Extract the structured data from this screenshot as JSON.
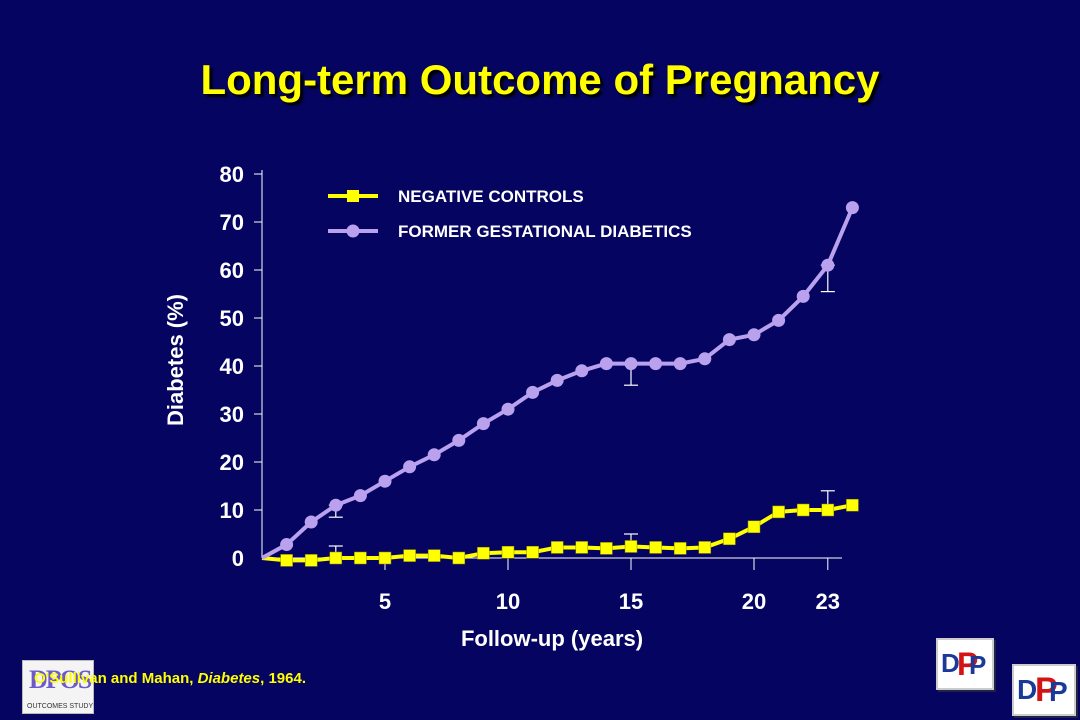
{
  "slide": {
    "title": "Long-term Outcome of Pregnancy",
    "citation_authors": "O'Sullivan and Mahan, ",
    "citation_journal": "Diabetes",
    "citation_year": ", 1964.",
    "logo_left_text": "DPOS",
    "logo_left_subtitle": "OUTCOMES STUDY",
    "logo_right_text": "DPP",
    "colors": {
      "background": "#050561",
      "title": "#ffff00",
      "negative_controls": "#ffff00",
      "former_gdm": "#b9a1ee"
    }
  },
  "chart_data": {
    "type": "line",
    "title": "Long-term Outcome of Pregnancy",
    "xlabel": "Follow-up (years)",
    "ylabel": "Diabetes (%)",
    "xlim": [
      0,
      24
    ],
    "ylim": [
      0,
      80
    ],
    "x_ticks": [
      5,
      10,
      15,
      20,
      23
    ],
    "y_ticks": [
      0,
      10,
      20,
      30,
      40,
      50,
      60,
      70,
      80
    ],
    "legend_position": "top",
    "series": [
      {
        "name": "NEGATIVE CONTROLS",
        "marker": "square",
        "color": "#ffff00",
        "x": [
          0,
          1,
          2,
          3,
          4,
          5,
          6,
          7,
          8,
          9,
          10,
          11,
          12,
          13,
          14,
          15,
          16,
          17,
          18,
          19,
          20,
          21,
          22,
          23,
          24
        ],
        "y": [
          0,
          -0.5,
          -0.5,
          0,
          0,
          0,
          0.5,
          0.5,
          0,
          1,
          1.2,
          1.2,
          2.2,
          2.2,
          2,
          2.4,
          2.2,
          2,
          2.2,
          4,
          6.5,
          9.6,
          10,
          10,
          11
        ],
        "error_bars": [
          {
            "x": 3,
            "upper": 2.5,
            "lower": 0
          },
          {
            "x": 15,
            "upper": 5,
            "lower": 2.4
          },
          {
            "x": 23,
            "upper": 14,
            "lower": 10
          }
        ]
      },
      {
        "name": "FORMER GESTATIONAL DIABETICS",
        "marker": "circle",
        "color": "#b9a1ee",
        "x": [
          0,
          1,
          2,
          3,
          4,
          5,
          6,
          7,
          8,
          9,
          10,
          11,
          12,
          13,
          14,
          15,
          16,
          17,
          18,
          19,
          20,
          21,
          22,
          23,
          24
        ],
        "y": [
          0,
          2.8,
          7.5,
          11,
          13,
          16,
          19,
          21.5,
          24.5,
          28,
          31,
          34.5,
          37,
          39,
          40.5,
          40.5,
          40.5,
          40.5,
          41.5,
          45.5,
          46.5,
          49.5,
          54.5,
          61,
          73
        ],
        "error_bars": [
          {
            "x": 3,
            "upper": 11,
            "lower": 8.5
          },
          {
            "x": 15,
            "upper": 40.5,
            "lower": 36
          },
          {
            "x": 23,
            "upper": 61,
            "lower": 55.5
          }
        ]
      }
    ]
  }
}
